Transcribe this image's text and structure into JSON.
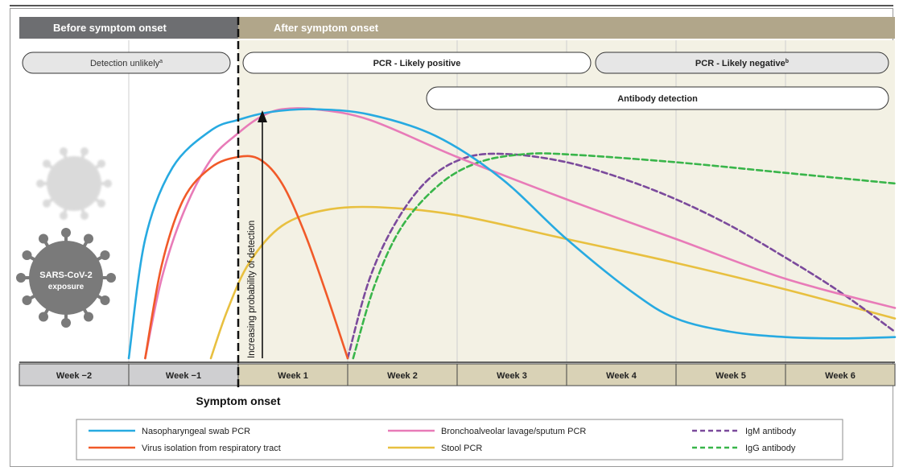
{
  "chart_data": {
    "type": "line",
    "header": {
      "before_label": "Before symptom onset",
      "after_label": "After symptom onset",
      "before_color": "#6d6e71",
      "after_color": "#b1a68a"
    },
    "pills": {
      "detection_unlikely": "Detection unlikely",
      "detection_unlikely_sup": "a",
      "pcr_positive": "PCR - Likely positive",
      "pcr_negative": "PCR - Likely negative",
      "pcr_negative_sup": "b",
      "antibody": "Antibody detection"
    },
    "ylabel": "Increasing probability of detection",
    "xlabel": "Symptom onset",
    "virus_label_line1": "SARS-CoV-2",
    "virus_label_line2": "exposure",
    "x_unit": "weeks relative to symptom onset",
    "xlim": [
      -2,
      6
    ],
    "ylim": [
      0,
      1
    ],
    "categories": [
      "Week −2",
      "Week −1",
      "Week 1",
      "Week 2",
      "Week 3",
      "Week 4",
      "Week 5",
      "Week 6"
    ],
    "grid": true,
    "legend_position": "bottom",
    "series": [
      {
        "name": "Nasopharyngeal swab PCR",
        "color": "#27aae1",
        "dash": false,
        "points": [
          [
            -1,
            0.0
          ],
          [
            -0.85,
            0.45
          ],
          [
            -0.6,
            0.72
          ],
          [
            -0.25,
            0.86
          ],
          [
            0,
            0.9
          ],
          [
            0.3,
            0.93
          ],
          [
            0.7,
            0.94
          ],
          [
            1.2,
            0.92
          ],
          [
            1.8,
            0.84
          ],
          [
            2.4,
            0.68
          ],
          [
            3.0,
            0.45
          ],
          [
            3.6,
            0.25
          ],
          [
            4.0,
            0.15
          ],
          [
            4.5,
            0.1
          ],
          [
            5.0,
            0.08
          ],
          [
            5.5,
            0.075
          ],
          [
            6.0,
            0.08
          ]
        ]
      },
      {
        "name": "Virus isolation from respiratory tract",
        "color": "#f15a29",
        "dash": false,
        "points": [
          [
            -0.85,
            0.0
          ],
          [
            -0.7,
            0.35
          ],
          [
            -0.5,
            0.6
          ],
          [
            -0.25,
            0.72
          ],
          [
            0,
            0.76
          ],
          [
            0.2,
            0.75
          ],
          [
            0.4,
            0.66
          ],
          [
            0.6,
            0.48
          ],
          [
            0.8,
            0.25
          ],
          [
            1.0,
            0.0
          ]
        ]
      },
      {
        "name": "Bronchoalveolar lavage/sputum PCR",
        "color": "#e87bb8",
        "dash": false,
        "points": [
          [
            -0.85,
            0.0
          ],
          [
            -0.7,
            0.3
          ],
          [
            -0.5,
            0.55
          ],
          [
            -0.25,
            0.75
          ],
          [
            0,
            0.85
          ],
          [
            0.2,
            0.91
          ],
          [
            0.4,
            0.94
          ],
          [
            0.7,
            0.94
          ],
          [
            1.2,
            0.9
          ],
          [
            2.0,
            0.76
          ],
          [
            3.0,
            0.6
          ],
          [
            4.0,
            0.45
          ],
          [
            5.0,
            0.3
          ],
          [
            6.0,
            0.19
          ]
        ]
      },
      {
        "name": "Stool PCR",
        "color": "#e8c040",
        "dash": false,
        "points": [
          [
            -0.25,
            0.0
          ],
          [
            -0.1,
            0.18
          ],
          [
            0.1,
            0.36
          ],
          [
            0.4,
            0.5
          ],
          [
            0.8,
            0.56
          ],
          [
            1.3,
            0.57
          ],
          [
            2.0,
            0.54
          ],
          [
            3.0,
            0.45
          ],
          [
            4.0,
            0.36
          ],
          [
            5.0,
            0.26
          ],
          [
            6.0,
            0.15
          ]
        ]
      },
      {
        "name": "IgM antibody",
        "color": "#7b4a9c",
        "dash": true,
        "points": [
          [
            1.0,
            0.0
          ],
          [
            1.2,
            0.3
          ],
          [
            1.45,
            0.52
          ],
          [
            1.75,
            0.68
          ],
          [
            2.1,
            0.76
          ],
          [
            2.5,
            0.77
          ],
          [
            3.0,
            0.74
          ],
          [
            3.5,
            0.68
          ],
          [
            4.0,
            0.6
          ],
          [
            4.5,
            0.5
          ],
          [
            5.0,
            0.38
          ],
          [
            5.5,
            0.25
          ],
          [
            6.0,
            0.1
          ]
        ]
      },
      {
        "name": "IgG antibody",
        "color": "#39b54a",
        "dash": true,
        "points": [
          [
            1.05,
            0.0
          ],
          [
            1.25,
            0.28
          ],
          [
            1.5,
            0.5
          ],
          [
            1.85,
            0.66
          ],
          [
            2.2,
            0.74
          ],
          [
            2.6,
            0.77
          ],
          [
            3.0,
            0.77
          ],
          [
            4.0,
            0.74
          ],
          [
            5.0,
            0.7
          ],
          [
            6.0,
            0.66
          ]
        ]
      }
    ]
  }
}
